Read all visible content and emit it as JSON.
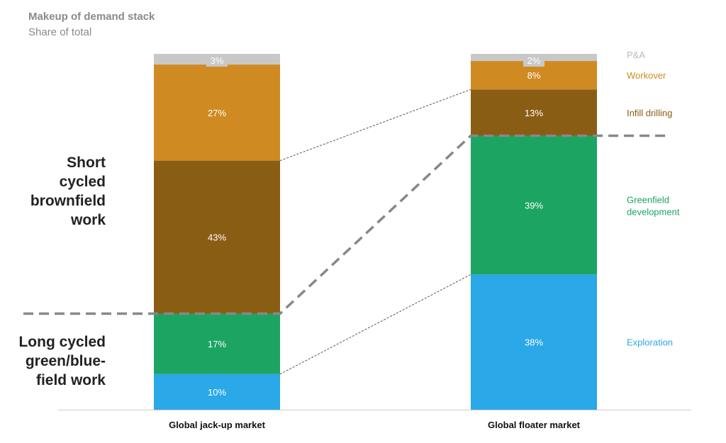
{
  "title": "Makeup of demand stack",
  "subtitle": "Share of total",
  "side_labels": {
    "short": [
      "Short",
      "cycled",
      "brownfield",
      "work"
    ],
    "long": [
      "Long cycled",
      "green/blue-",
      "field work"
    ]
  },
  "colors": {
    "exploration": "#2aa8e8",
    "greenfield": "#1ca463",
    "infill": "#8a5d15",
    "workover": "#cf8b22",
    "pa": "#c8c8c8",
    "axis": "#cccccc",
    "dash": "#888888"
  },
  "chart_data": {
    "type": "bar",
    "stacked": true,
    "normalized": true,
    "categories": [
      "Global jack-up market",
      "Global floater market"
    ],
    "series": [
      {
        "name": "Exploration",
        "values": [
          10,
          38
        ],
        "color_key": "exploration"
      },
      {
        "name": "Greenfield development",
        "values": [
          17,
          39
        ],
        "color_key": "greenfield"
      },
      {
        "name": "Infill drilling",
        "values": [
          43,
          13
        ],
        "color_key": "infill"
      },
      {
        "name": "Workover",
        "values": [
          27,
          8
        ],
        "color_key": "workover"
      },
      {
        "name": "P&A",
        "values": [
          3,
          2
        ],
        "color_key": "pa"
      }
    ],
    "value_suffix": "%",
    "ylim": [
      0,
      100
    ],
    "legend": "right",
    "grid": false
  }
}
